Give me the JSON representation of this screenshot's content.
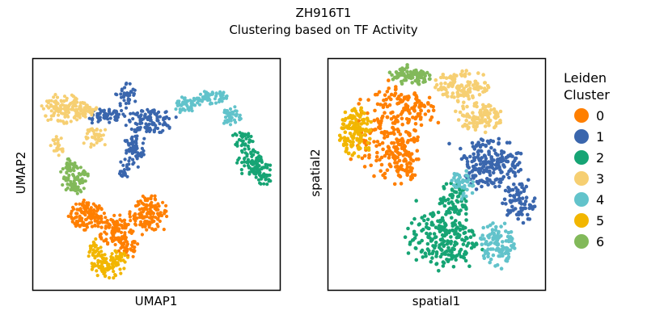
{
  "figure": {
    "title_line1": "ZH916T1",
    "title_line2": "Clustering based on TF Activity"
  },
  "legend": {
    "title_line1": "Leiden",
    "title_line2": "Cluster",
    "items": [
      {
        "label": "0",
        "color": "#ff7f00"
      },
      {
        "label": "1",
        "color": "#3a66ad"
      },
      {
        "label": "2",
        "color": "#16a474"
      },
      {
        "label": "3",
        "color": "#f6cf72"
      },
      {
        "label": "4",
        "color": "#62c3cb"
      },
      {
        "label": "5",
        "color": "#f2b600"
      },
      {
        "label": "6",
        "color": "#82b95a"
      }
    ]
  },
  "chart_data": [
    {
      "type": "scatter",
      "panel": "umap",
      "title": "",
      "xlabel": "UMAP1",
      "ylabel": "UMAP2",
      "ticks": "none",
      "grid": false,
      "legend": "right, shared",
      "xlim": [
        0,
        1
      ],
      "ylim": [
        0,
        1
      ],
      "clusters": [
        {
          "label": "0",
          "regions": [
            {
              "cx": 0.22,
              "cy": 0.32,
              "rx": 0.07,
              "ry": 0.06,
              "n": 120
            },
            {
              "cx": 0.33,
              "cy": 0.26,
              "rx": 0.07,
              "ry": 0.07,
              "n": 110
            },
            {
              "cx": 0.47,
              "cy": 0.33,
              "rx": 0.07,
              "ry": 0.07,
              "n": 130
            },
            {
              "cx": 0.38,
              "cy": 0.18,
              "rx": 0.05,
              "ry": 0.04,
              "n": 40
            }
          ]
        },
        {
          "label": "1",
          "regions": [
            {
              "cx": 0.3,
              "cy": 0.75,
              "rx": 0.07,
              "ry": 0.03,
              "n": 60
            },
            {
              "cx": 0.47,
              "cy": 0.73,
              "rx": 0.09,
              "ry": 0.05,
              "n": 120
            },
            {
              "cx": 0.41,
              "cy": 0.6,
              "rx": 0.04,
              "ry": 0.07,
              "n": 70
            },
            {
              "cx": 0.38,
              "cy": 0.84,
              "rx": 0.04,
              "ry": 0.05,
              "n": 40
            },
            {
              "cx": 0.37,
              "cy": 0.52,
              "rx": 0.02,
              "ry": 0.04,
              "n": 20
            }
          ]
        },
        {
          "label": "2",
          "regions": [
            {
              "cx": 0.85,
              "cy": 0.65,
              "rx": 0.04,
              "ry": 0.04,
              "n": 40
            },
            {
              "cx": 0.88,
              "cy": 0.55,
              "rx": 0.05,
              "ry": 0.06,
              "n": 70
            },
            {
              "cx": 0.93,
              "cy": 0.5,
              "rx": 0.04,
              "ry": 0.05,
              "n": 50
            }
          ]
        },
        {
          "label": "3",
          "regions": [
            {
              "cx": 0.12,
              "cy": 0.78,
              "rx": 0.08,
              "ry": 0.06,
              "n": 110
            },
            {
              "cx": 0.2,
              "cy": 0.78,
              "rx": 0.06,
              "ry": 0.03,
              "n": 50
            },
            {
              "cx": 0.26,
              "cy": 0.66,
              "rx": 0.05,
              "ry": 0.04,
              "n": 40
            },
            {
              "cx": 0.1,
              "cy": 0.62,
              "rx": 0.02,
              "ry": 0.05,
              "n": 25
            }
          ]
        },
        {
          "label": "4",
          "regions": [
            {
              "cx": 0.62,
              "cy": 0.8,
              "rx": 0.05,
              "ry": 0.03,
              "n": 50
            },
            {
              "cx": 0.72,
              "cy": 0.83,
              "rx": 0.06,
              "ry": 0.03,
              "n": 60
            },
            {
              "cx": 0.8,
              "cy": 0.75,
              "rx": 0.04,
              "ry": 0.04,
              "n": 40
            }
          ]
        },
        {
          "label": "5",
          "regions": [
            {
              "cx": 0.3,
              "cy": 0.1,
              "rx": 0.06,
              "ry": 0.05,
              "n": 80
            },
            {
              "cx": 0.25,
              "cy": 0.17,
              "rx": 0.03,
              "ry": 0.05,
              "n": 30
            },
            {
              "cx": 0.35,
              "cy": 0.14,
              "rx": 0.03,
              "ry": 0.03,
              "n": 20
            }
          ]
        },
        {
          "label": "6",
          "regions": [
            {
              "cx": 0.17,
              "cy": 0.48,
              "rx": 0.05,
              "ry": 0.06,
              "n": 80
            },
            {
              "cx": 0.15,
              "cy": 0.54,
              "rx": 0.03,
              "ry": 0.03,
              "n": 25
            }
          ]
        }
      ]
    },
    {
      "type": "scatter",
      "panel": "spatial",
      "title": "",
      "xlabel": "spatial1",
      "ylabel": "spatial2",
      "ticks": "none",
      "grid": false,
      "legend": "right, shared",
      "xlim": [
        0,
        1
      ],
      "ylim": [
        0,
        1
      ],
      "clusters": [
        {
          "label": "0",
          "regions": [
            {
              "cx": 0.27,
              "cy": 0.68,
              "rx": 0.13,
              "ry": 0.2,
              "n": 200
            },
            {
              "cx": 0.35,
              "cy": 0.55,
              "rx": 0.07,
              "ry": 0.1,
              "n": 60
            },
            {
              "cx": 0.42,
              "cy": 0.78,
              "rx": 0.08,
              "ry": 0.07,
              "n": 60
            }
          ]
        },
        {
          "label": "1",
          "regions": [
            {
              "cx": 0.74,
              "cy": 0.55,
              "rx": 0.14,
              "ry": 0.1,
              "n": 200
            },
            {
              "cx": 0.88,
              "cy": 0.38,
              "rx": 0.07,
              "ry": 0.09,
              "n": 80
            }
          ]
        },
        {
          "label": "2",
          "regions": [
            {
              "cx": 0.52,
              "cy": 0.22,
              "rx": 0.15,
              "ry": 0.12,
              "n": 220
            },
            {
              "cx": 0.58,
              "cy": 0.38,
              "rx": 0.06,
              "ry": 0.08,
              "n": 60
            }
          ]
        },
        {
          "label": "3",
          "regions": [
            {
              "cx": 0.62,
              "cy": 0.88,
              "rx": 0.12,
              "ry": 0.06,
              "n": 120
            },
            {
              "cx": 0.7,
              "cy": 0.75,
              "rx": 0.1,
              "ry": 0.06,
              "n": 100
            }
          ]
        },
        {
          "label": "4",
          "regions": [
            {
              "cx": 0.78,
              "cy": 0.2,
              "rx": 0.08,
              "ry": 0.09,
              "n": 110
            },
            {
              "cx": 0.62,
              "cy": 0.45,
              "rx": 0.05,
              "ry": 0.06,
              "n": 40
            }
          ]
        },
        {
          "label": "5",
          "regions": [
            {
              "cx": 0.13,
              "cy": 0.68,
              "rx": 0.07,
              "ry": 0.1,
              "n": 130
            }
          ]
        },
        {
          "label": "6",
          "regions": [
            {
              "cx": 0.38,
              "cy": 0.92,
              "rx": 0.1,
              "ry": 0.04,
              "n": 80
            }
          ]
        }
      ]
    }
  ]
}
